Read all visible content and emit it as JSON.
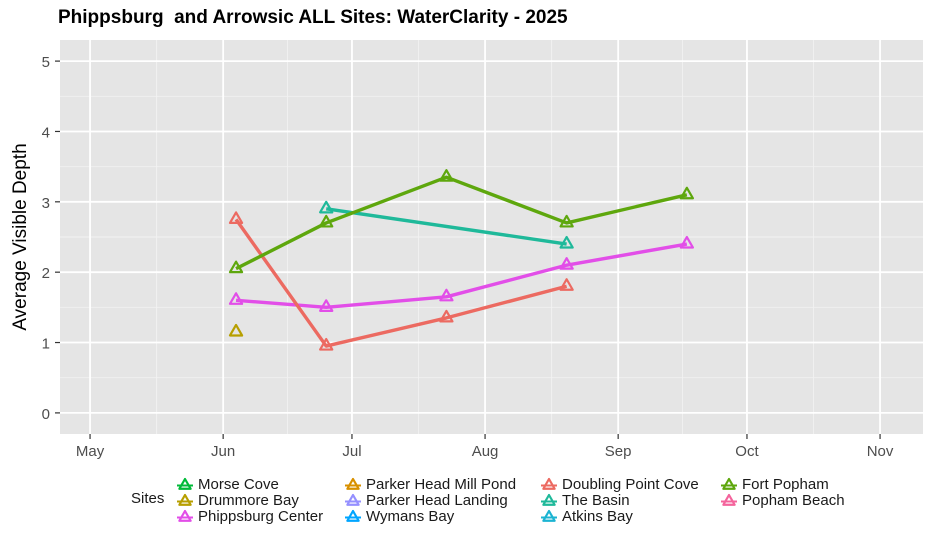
{
  "chart_data": {
    "type": "line",
    "title": "Phippsburg  and Arrowsic ALL Sites: WaterClarity - 2025",
    "xlabel": "",
    "ylabel": "Average Visible Depth",
    "xlim": [
      "2025-04-24",
      "2025-11-11"
    ],
    "ylim": [
      -0.3,
      5.3
    ],
    "x_ticks": [
      "May",
      "Jun",
      "Jul",
      "Aug",
      "Sep",
      "Oct",
      "Nov"
    ],
    "x_tick_dates": [
      "2025-05-01",
      "2025-06-01",
      "2025-07-01",
      "2025-08-01",
      "2025-09-01",
      "2025-10-01",
      "2025-11-01"
    ],
    "y_ticks": [
      0,
      1,
      2,
      3,
      4,
      5
    ],
    "grid": true,
    "legend_title": "Sites",
    "legend_position": "bottom",
    "series": [
      {
        "name": "Morse Cove",
        "color": "#00BA38",
        "x": [],
        "y": []
      },
      {
        "name": "Drummore Bay",
        "color": "#B79F00",
        "x": [
          "2025-06-04"
        ],
        "y": [
          1.15
        ]
      },
      {
        "name": "Phippsburg Center",
        "color": "#E24EE8",
        "x": [
          "2025-06-04",
          "2025-06-25",
          "2025-07-23",
          "2025-08-20",
          "2025-09-17"
        ],
        "y": [
          1.6,
          1.5,
          1.65,
          2.1,
          2.4
        ]
      },
      {
        "name": "Parker Head Mill Pond",
        "color": "#D89000",
        "x": [],
        "y": []
      },
      {
        "name": "Parker Head Landing",
        "color": "#9590FF",
        "x": [],
        "y": []
      },
      {
        "name": "Wymans Bay",
        "color": "#00A5FF",
        "x": [],
        "y": []
      },
      {
        "name": "Doubling Point Cove",
        "color": "#EC6A61",
        "x": [
          "2025-06-04",
          "2025-06-25",
          "2025-07-23",
          "2025-08-20"
        ],
        "y": [
          2.75,
          0.95,
          1.35,
          1.8
        ]
      },
      {
        "name": "The Basin",
        "color": "#1FB99A",
        "x": [
          "2025-06-25",
          "2025-08-20"
        ],
        "y": [
          2.9,
          2.4
        ]
      },
      {
        "name": "Atkins Bay",
        "color": "#1CB4D2",
        "x": [],
        "y": []
      },
      {
        "name": "Fort Popham",
        "color": "#5EA70D",
        "x": [
          "2025-06-04",
          "2025-06-25",
          "2025-07-23",
          "2025-08-20",
          "2025-09-17"
        ],
        "y": [
          2.05,
          2.7,
          3.35,
          2.7,
          3.1
        ]
      },
      {
        "name": "Popham Beach",
        "color": "#F4649C",
        "x": [],
        "y": []
      }
    ]
  }
}
